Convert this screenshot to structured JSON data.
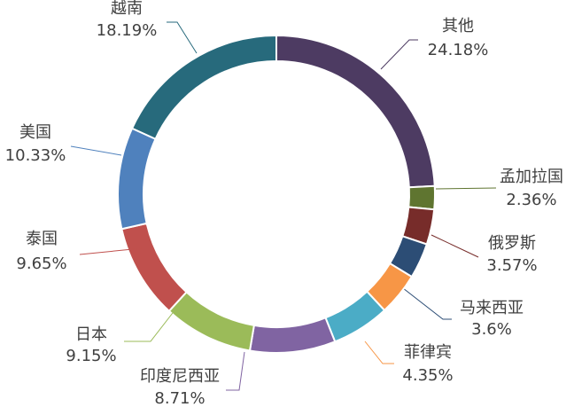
{
  "chart_data": {
    "type": "donut",
    "categories": [
      "其他",
      "孟加拉国",
      "俄罗斯",
      "马来西亚",
      "菲律宾",
      null,
      "印度尼西亚",
      "日本",
      "泰国",
      "美国",
      "越南"
    ],
    "values": [
      24.18,
      2.36,
      3.57,
      3.6,
      4.35,
      5.91,
      8.71,
      9.15,
      9.65,
      10.33,
      18.19
    ],
    "value_labels": [
      "24.18%",
      "2.36%",
      "3.57%",
      "3.6%",
      "4.35%",
      null,
      "8.71%",
      "9.15%",
      "9.65%",
      "10.33%",
      "18.19%"
    ],
    "colors": [
      "#4d3b62",
      "#5f7530",
      "#772c2a",
      "#2c4d75",
      "#f79646",
      "#4bacc6",
      "#8064a2",
      "#9bbb59",
      "#c0504d",
      "#4f81bd",
      "#276a7c"
    ]
  }
}
